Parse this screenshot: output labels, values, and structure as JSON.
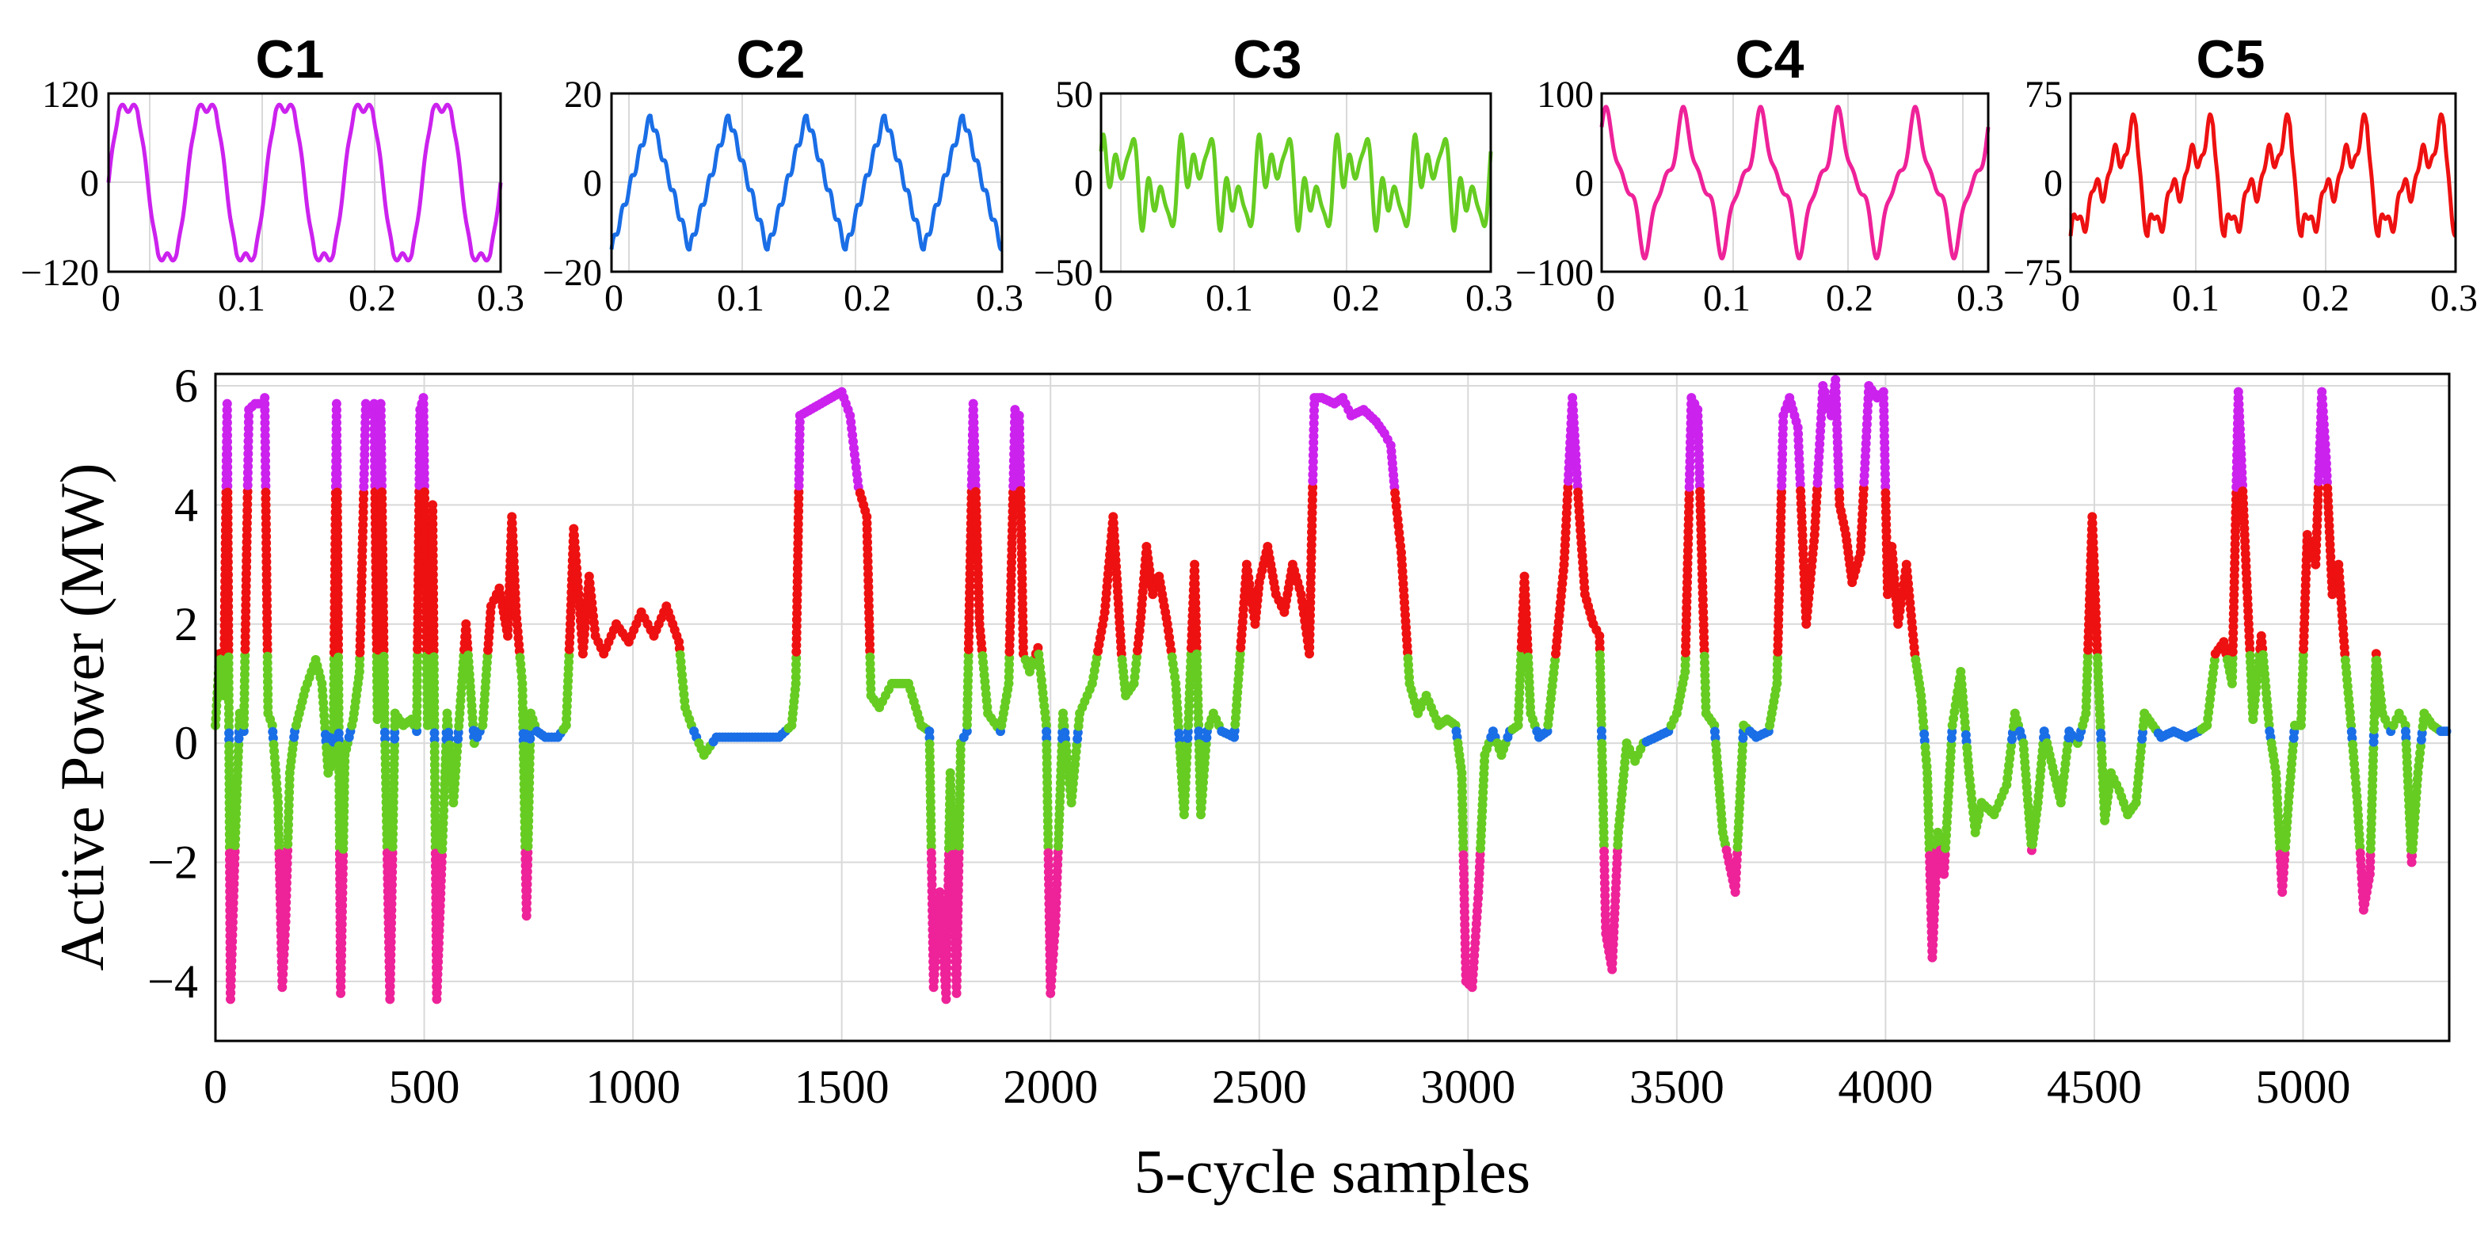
{
  "chart_data": [
    {
      "type": "line",
      "title": "C1",
      "color": "#cc22ee",
      "xlim": [
        0,
        0.3
      ],
      "ylim": [
        -120,
        120
      ],
      "xticks": [
        "0",
        "0.1",
        "0.2",
        "0.3"
      ],
      "yticks": [
        "120",
        "0",
        "−120"
      ],
      "waveform": {
        "shape": "clipped_sine",
        "cycles": 5,
        "amplitude": 100
      }
    },
    {
      "type": "line",
      "title": "C2",
      "color": "#1a6ee6",
      "xlim": [
        0,
        0.3
      ],
      "ylim": [
        -20,
        20
      ],
      "xticks": [
        "0",
        "0.1",
        "0.2",
        "0.3"
      ],
      "yticks": [
        "20",
        "0",
        "−20"
      ],
      "waveform": {
        "shape": "triangle",
        "cycles": 5,
        "amplitude": 15
      }
    },
    {
      "type": "line",
      "title": "C3",
      "color": "#66cc22",
      "xlim": [
        0,
        0.3
      ],
      "ylim": [
        -50,
        50
      ],
      "xticks": [
        "0",
        "0.1",
        "0.2",
        "0.3"
      ],
      "yticks": [
        "50",
        "0",
        "−50"
      ],
      "waveform": {
        "shape": "harmonic",
        "cycles": 5,
        "amplitude": 30
      }
    },
    {
      "type": "line",
      "title": "C4",
      "color": "#ee2299",
      "xlim": [
        0,
        0.3
      ],
      "ylim": [
        -100,
        100
      ],
      "xticks": [
        "0",
        "0.1",
        "0.2",
        "0.3"
      ],
      "yticks": [
        "100",
        "0",
        "−100"
      ],
      "waveform": {
        "shape": "distorted",
        "cycles": 5,
        "amplitude": 70
      }
    },
    {
      "type": "line",
      "title": "C5",
      "color": "#ee1111",
      "xlim": [
        0,
        0.3
      ],
      "ylim": [
        -75,
        75
      ],
      "xticks": [
        "0",
        "0.1",
        "0.2",
        "0.3"
      ],
      "yticks": [
        "75",
        "0",
        "−75"
      ],
      "waveform": {
        "shape": "sawtooth",
        "cycles": 5,
        "amplitude": 60
      }
    },
    {
      "type": "scatter",
      "title": "",
      "xlabel": "5-cycle samples",
      "ylabel": "Active Power (MW)",
      "xlim": [
        0,
        5350
      ],
      "ylim": [
        -5,
        6.2
      ],
      "xticks": [
        0,
        500,
        1000,
        1500,
        2000,
        2500,
        3000,
        3500,
        4000,
        4500,
        5000
      ],
      "yticks": [
        6,
        4,
        2,
        0,
        -2,
        -4
      ],
      "line_color": "#000000",
      "cluster_colors": {
        "C1": "#cc22ee",
        "C2": "#1a6ee6",
        "C3": "#66cc22",
        "C4": "#ee2299",
        "C5": "#ee1111"
      },
      "series_keypoints": [
        [
          0,
          0.3
        ],
        [
          10,
          1.5
        ],
        [
          20,
          0.8
        ],
        [
          28,
          5.7
        ],
        [
          36,
          -4.3
        ],
        [
          48,
          -1.5
        ],
        [
          58,
          0.5
        ],
        [
          68,
          0.2
        ],
        [
          80,
          5.6
        ],
        [
          95,
          5.7
        ],
        [
          108,
          5.7
        ],
        [
          118,
          5.8
        ],
        [
          126,
          0.5
        ],
        [
          136,
          0.3
        ],
        [
          150,
          -1.0
        ],
        [
          160,
          -4.1
        ],
        [
          168,
          -3.0
        ],
        [
          178,
          -0.5
        ],
        [
          190,
          0.2
        ],
        [
          215,
          0.9
        ],
        [
          240,
          1.4
        ],
        [
          255,
          1.0
        ],
        [
          270,
          -0.5
        ],
        [
          282,
          -0.3
        ],
        [
          290,
          5.7
        ],
        [
          300,
          -4.2
        ],
        [
          310,
          -0.2
        ],
        [
          330,
          0.4
        ],
        [
          345,
          1.2
        ],
        [
          360,
          5.7
        ],
        [
          372,
          5.6
        ],
        [
          380,
          5.7
        ],
        [
          388,
          0.4
        ],
        [
          396,
          5.7
        ],
        [
          405,
          0.5
        ],
        [
          418,
          -4.3
        ],
        [
          430,
          0.5
        ],
        [
          450,
          0.3
        ],
        [
          470,
          0.4
        ],
        [
          482,
          0.2
        ],
        [
          490,
          5.6
        ],
        [
          498,
          5.8
        ],
        [
          508,
          0.3
        ],
        [
          520,
          4.0
        ],
        [
          530,
          -4.3
        ],
        [
          542,
          -2.0
        ],
        [
          555,
          0.5
        ],
        [
          570,
          -1.0
        ],
        [
          585,
          0.5
        ],
        [
          600,
          2.0
        ],
        [
          620,
          0.0
        ],
        [
          640,
          0.3
        ],
        [
          660,
          2.3
        ],
        [
          680,
          2.6
        ],
        [
          700,
          1.8
        ],
        [
          710,
          3.8
        ],
        [
          720,
          2.2
        ],
        [
          735,
          1.0
        ],
        [
          745,
          -2.9
        ],
        [
          755,
          0.5
        ],
        [
          770,
          0.2
        ],
        [
          790,
          0.1
        ],
        [
          820,
          0.1
        ],
        [
          840,
          0.3
        ],
        [
          850,
          2.0
        ],
        [
          858,
          3.6
        ],
        [
          870,
          2.5
        ],
        [
          880,
          1.5
        ],
        [
          895,
          2.8
        ],
        [
          910,
          1.8
        ],
        [
          930,
          1.5
        ],
        [
          960,
          2.0
        ],
        [
          990,
          1.7
        ],
        [
          1020,
          2.2
        ],
        [
          1050,
          1.8
        ],
        [
          1080,
          2.3
        ],
        [
          1110,
          1.7
        ],
        [
          1125,
          0.6
        ],
        [
          1140,
          0.3
        ],
        [
          1170,
          -0.2
        ],
        [
          1200,
          0.1
        ],
        [
          1250,
          0.1
        ],
        [
          1300,
          0.1
        ],
        [
          1350,
          0.1
        ],
        [
          1380,
          0.3
        ],
        [
          1390,
          1.0
        ],
        [
          1400,
          5.5
        ],
        [
          1450,
          5.7
        ],
        [
          1500,
          5.9
        ],
        [
          1520,
          5.5
        ],
        [
          1540,
          4.3
        ],
        [
          1560,
          3.8
        ],
        [
          1570,
          0.8
        ],
        [
          1590,
          0.6
        ],
        [
          1620,
          1.0
        ],
        [
          1660,
          1.0
        ],
        [
          1690,
          0.3
        ],
        [
          1710,
          0.2
        ],
        [
          1720,
          -4.1
        ],
        [
          1735,
          -2.5
        ],
        [
          1750,
          -4.3
        ],
        [
          1760,
          -0.5
        ],
        [
          1775,
          -4.2
        ],
        [
          1785,
          0.0
        ],
        [
          1800,
          0.2
        ],
        [
          1815,
          5.7
        ],
        [
          1830,
          2.0
        ],
        [
          1850,
          0.5
        ],
        [
          1880,
          0.2
        ],
        [
          1900,
          1.0
        ],
        [
          1915,
          5.6
        ],
        [
          1925,
          5.5
        ],
        [
          1935,
          1.5
        ],
        [
          1950,
          1.2
        ],
        [
          1970,
          1.6
        ],
        [
          1990,
          0.3
        ],
        [
          2000,
          -4.2
        ],
        [
          2012,
          -3.0
        ],
        [
          2030,
          0.5
        ],
        [
          2050,
          -1.0
        ],
        [
          2070,
          0.5
        ],
        [
          2100,
          1.0
        ],
        [
          2130,
          2.2
        ],
        [
          2150,
          3.8
        ],
        [
          2170,
          1.5
        ],
        [
          2180,
          0.8
        ],
        [
          2200,
          1.0
        ],
        [
          2215,
          2.0
        ],
        [
          2230,
          3.3
        ],
        [
          2245,
          2.5
        ],
        [
          2260,
          2.8
        ],
        [
          2280,
          2.0
        ],
        [
          2300,
          1.0
        ],
        [
          2320,
          -1.2
        ],
        [
          2330,
          0.3
        ],
        [
          2345,
          3.0
        ],
        [
          2360,
          -1.2
        ],
        [
          2375,
          0.2
        ],
        [
          2390,
          0.5
        ],
        [
          2410,
          0.2
        ],
        [
          2440,
          0.1
        ],
        [
          2470,
          3.0
        ],
        [
          2490,
          2.0
        ],
        [
          2500,
          2.7
        ],
        [
          2520,
          3.3
        ],
        [
          2540,
          2.5
        ],
        [
          2560,
          2.2
        ],
        [
          2580,
          3.0
        ],
        [
          2600,
          2.5
        ],
        [
          2620,
          1.5
        ],
        [
          2632,
          5.8
        ],
        [
          2650,
          5.8
        ],
        [
          2680,
          5.7
        ],
        [
          2700,
          5.8
        ],
        [
          2720,
          5.5
        ],
        [
          2750,
          5.6
        ],
        [
          2780,
          5.4
        ],
        [
          2800,
          5.2
        ],
        [
          2815,
          5.0
        ],
        [
          2825,
          4.2
        ],
        [
          2840,
          3.2
        ],
        [
          2860,
          1.0
        ],
        [
          2880,
          0.5
        ],
        [
          2900,
          0.8
        ],
        [
          2930,
          0.3
        ],
        [
          2950,
          0.4
        ],
        [
          2970,
          0.3
        ],
        [
          2985,
          -0.5
        ],
        [
          2995,
          -4.0
        ],
        [
          3010,
          -4.1
        ],
        [
          3025,
          -2.5
        ],
        [
          3040,
          -0.2
        ],
        [
          3060,
          0.2
        ],
        [
          3080,
          -0.2
        ],
        [
          3100,
          0.2
        ],
        [
          3120,
          0.3
        ],
        [
          3135,
          2.8
        ],
        [
          3150,
          0.5
        ],
        [
          3170,
          0.1
        ],
        [
          3190,
          0.2
        ],
        [
          3210,
          1.5
        ],
        [
          3230,
          3.0
        ],
        [
          3250,
          5.8
        ],
        [
          3265,
          4.0
        ],
        [
          3280,
          2.5
        ],
        [
          3300,
          2.0
        ],
        [
          3315,
          1.8
        ],
        [
          3330,
          -3.2
        ],
        [
          3345,
          -3.8
        ],
        [
          3360,
          -1.5
        ],
        [
          3380,
          0.0
        ],
        [
          3400,
          -0.3
        ],
        [
          3420,
          0.0
        ],
        [
          3450,
          0.1
        ],
        [
          3480,
          0.2
        ],
        [
          3500,
          0.5
        ],
        [
          3520,
          1.2
        ],
        [
          3535,
          5.8
        ],
        [
          3550,
          5.6
        ],
        [
          3570,
          0.5
        ],
        [
          3590,
          0.3
        ],
        [
          3610,
          -1.5
        ],
        [
          3625,
          -2.0
        ],
        [
          3640,
          -2.5
        ],
        [
          3660,
          0.3
        ],
        [
          3690,
          0.1
        ],
        [
          3720,
          0.2
        ],
        [
          3740,
          1.0
        ],
        [
          3755,
          5.5
        ],
        [
          3770,
          5.8
        ],
        [
          3790,
          5.3
        ],
        [
          3810,
          2.0
        ],
        [
          3830,
          3.5
        ],
        [
          3850,
          6.0
        ],
        [
          3870,
          5.5
        ],
        [
          3880,
          6.1
        ],
        [
          3890,
          4.0
        ],
        [
          3905,
          3.5
        ],
        [
          3920,
          2.7
        ],
        [
          3940,
          3.2
        ],
        [
          3960,
          6.0
        ],
        [
          3980,
          5.8
        ],
        [
          3995,
          5.9
        ],
        [
          4005,
          2.5
        ],
        [
          4015,
          3.3
        ],
        [
          4030,
          2.0
        ],
        [
          4050,
          3.0
        ],
        [
          4070,
          1.5
        ],
        [
          4085,
          0.8
        ],
        [
          4100,
          -0.5
        ],
        [
          4112,
          -3.6
        ],
        [
          4125,
          -1.5
        ],
        [
          4140,
          -2.2
        ],
        [
          4160,
          0.3
        ],
        [
          4180,
          1.2
        ],
        [
          4200,
          -0.5
        ],
        [
          4215,
          -1.5
        ],
        [
          4230,
          -1.0
        ],
        [
          4260,
          -1.2
        ],
        [
          4290,
          -0.7
        ],
        [
          4310,
          0.5
        ],
        [
          4330,
          0.0
        ],
        [
          4350,
          -1.8
        ],
        [
          4365,
          -1.0
        ],
        [
          4380,
          0.2
        ],
        [
          4400,
          -0.4
        ],
        [
          4420,
          -1.0
        ],
        [
          4440,
          0.2
        ],
        [
          4460,
          0.0
        ],
        [
          4480,
          0.5
        ],
        [
          4495,
          3.8
        ],
        [
          4510,
          1.0
        ],
        [
          4525,
          -1.3
        ],
        [
          4540,
          -0.5
        ],
        [
          4560,
          -0.8
        ],
        [
          4580,
          -1.2
        ],
        [
          4600,
          -1.0
        ],
        [
          4620,
          0.5
        ],
        [
          4640,
          0.3
        ],
        [
          4660,
          0.1
        ],
        [
          4690,
          0.2
        ],
        [
          4720,
          0.1
        ],
        [
          4750,
          0.2
        ],
        [
          4770,
          0.3
        ],
        [
          4790,
          1.5
        ],
        [
          4810,
          1.7
        ],
        [
          4830,
          1.0
        ],
        [
          4845,
          5.9
        ],
        [
          4860,
          3.5
        ],
        [
          4880,
          0.4
        ],
        [
          4900,
          1.8
        ],
        [
          4920,
          0.2
        ],
        [
          4935,
          -0.5
        ],
        [
          4950,
          -2.5
        ],
        [
          4965,
          -1.0
        ],
        [
          4980,
          0.3
        ],
        [
          4995,
          0.3
        ],
        [
          5010,
          3.5
        ],
        [
          5030,
          3.0
        ],
        [
          5045,
          5.9
        ],
        [
          5055,
          4.8
        ],
        [
          5070,
          2.5
        ],
        [
          5085,
          3.0
        ],
        [
          5100,
          1.5
        ],
        [
          5115,
          0.3
        ],
        [
          5130,
          -1.0
        ],
        [
          5145,
          -2.8
        ],
        [
          5160,
          -2.2
        ],
        [
          5175,
          1.5
        ],
        [
          5190,
          0.5
        ],
        [
          5210,
          0.2
        ],
        [
          5230,
          0.5
        ],
        [
          5245,
          0.3
        ],
        [
          5260,
          -2.0
        ],
        [
          5275,
          -0.5
        ],
        [
          5290,
          0.5
        ],
        [
          5310,
          0.3
        ],
        [
          5330,
          0.2
        ],
        [
          5350,
          0.2
        ]
      ]
    }
  ]
}
